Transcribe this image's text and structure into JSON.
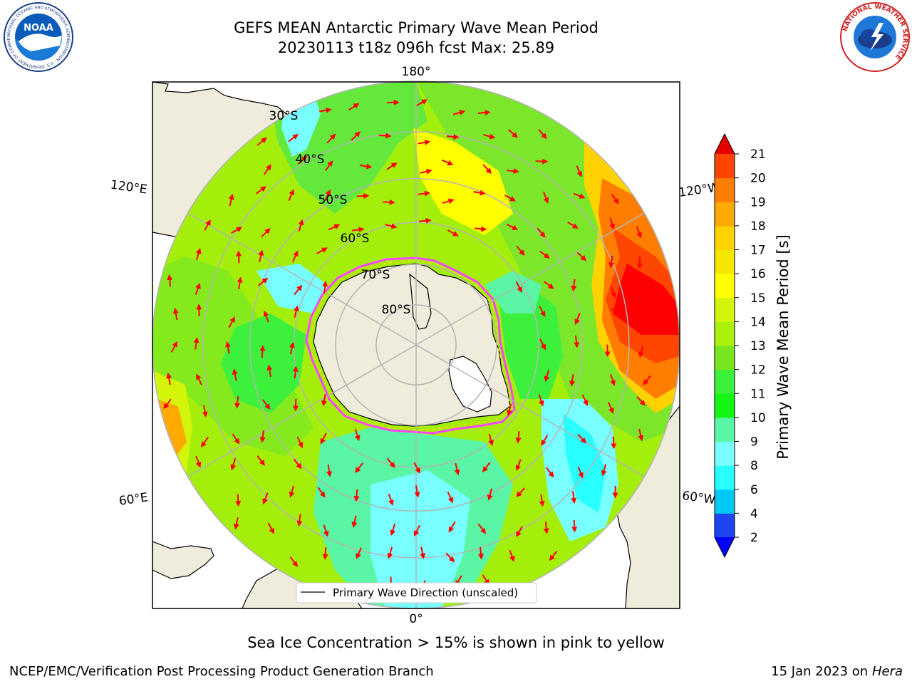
{
  "title": {
    "line1": "GEFS MEAN Antarctic Primary Wave Mean Period",
    "line2": "20230113 t18z 096h fcst   Max: 25.89"
  },
  "logos": {
    "left": {
      "icon": "noaa-logo",
      "text": "NOAA",
      "ring_text": "NATIONAL OCEANIC AND ATMOSPHERIC ADMINISTRATION · U.S. DEPARTMENT OF COMMERCE"
    },
    "right": {
      "icon": "nws-logo",
      "ring_text": "NATIONAL WEATHER SERVICE"
    }
  },
  "map": {
    "projection": "south-polar-stereographic",
    "lon_labels": [
      {
        "text": "180°",
        "lon": 180
      },
      {
        "text": "0°",
        "lon": 0
      },
      {
        "text": "120°E",
        "lon": 120
      },
      {
        "text": "60°E",
        "lon": 60
      },
      {
        "text": "120°W",
        "lon": -120
      },
      {
        "text": "60°W",
        "lon": -60
      }
    ],
    "lat_labels": [
      {
        "text": "30°S",
        "lat": -30
      },
      {
        "text": "40°S",
        "lat": -40
      },
      {
        "text": "50°S",
        "lat": -50
      },
      {
        "text": "60°S",
        "lat": -60
      },
      {
        "text": "70°S",
        "lat": -70
      },
      {
        "text": "80°S",
        "lat": -80
      }
    ],
    "legend_label": "Primary Wave Direction (unscaled)",
    "land_color": "#efecdc",
    "arrow_color": "#ff0000",
    "grid_color": "#b4b4b4"
  },
  "colorbar": {
    "label": "Primary Wave Mean Period [s]",
    "ticks": [
      "2",
      "4",
      "6",
      "8",
      "9",
      "10",
      "11",
      "12",
      "13",
      "14",
      "15",
      "16",
      "17",
      "18",
      "19",
      "20",
      "21"
    ],
    "colors": [
      "#1e46f0",
      "#00c8f5",
      "#28ffff",
      "#78ffff",
      "#5af5a5",
      "#14f514",
      "#3cf03c",
      "#78e61e",
      "#aaf00a",
      "#d2f50a",
      "#ffff00",
      "#f5e600",
      "#ffd200",
      "#ffaa00",
      "#ff7d00",
      "#ff4600",
      "#e60000"
    ],
    "under_color": "#0000ff",
    "over_color": "#e60000"
  },
  "ice_note": "Sea Ice Concentration > 15% is shown in pink to yellow",
  "footer": {
    "left": "NCEP/EMC/Verification Post Processing Product Generation Branch",
    "right_prefix": "15 Jan 2023 on ",
    "right_machine": "Hera"
  }
}
